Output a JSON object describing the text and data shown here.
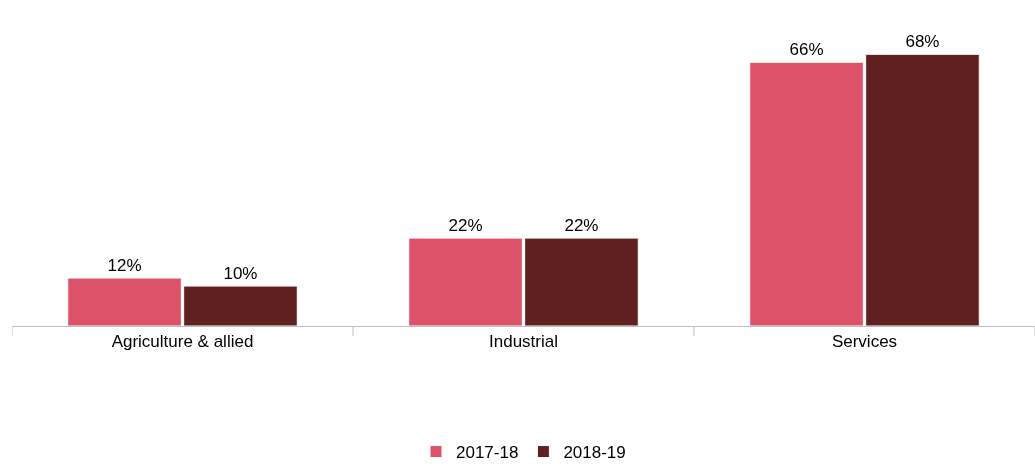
{
  "chart_data": {
    "type": "bar",
    "categories": [
      "Agriculture & allied",
      "Industrial",
      "Services"
    ],
    "series": [
      {
        "name": "2017-18",
        "color": "#dc5369",
        "values": [
          12,
          22,
          66
        ],
        "value_labels": [
          "12%",
          "22%",
          "66%"
        ]
      },
      {
        "name": "2018-19",
        "color": "#612020",
        "values": [
          10,
          22,
          68
        ],
        "value_labels": [
          "10%",
          "22%",
          "68%"
        ]
      }
    ],
    "legend": "bottom"
  }
}
